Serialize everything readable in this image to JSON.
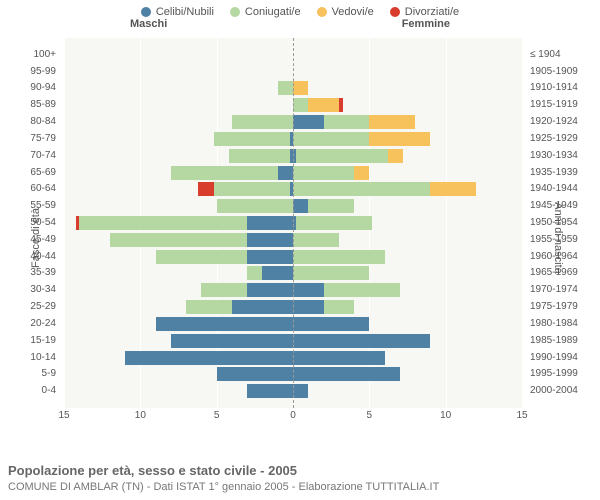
{
  "chart": {
    "type": "population-pyramid",
    "legend": [
      {
        "label": "Celibi/Nubili",
        "color": "#4f81a4"
      },
      {
        "label": "Coniugati/e",
        "color": "#b5d7a1"
      },
      {
        "label": "Vedovi/e",
        "color": "#f7c15b"
      },
      {
        "label": "Divorziati/e",
        "color": "#d73c2c"
      }
    ],
    "maschi_header": "Maschi",
    "femmine_header": "Femmine",
    "y_left_label": "Fasce di età",
    "y_right_label": "Anni di nascita",
    "x_max": 15,
    "x_ticks": [
      -15,
      -10,
      -5,
      0,
      5,
      10,
      15
    ],
    "plot_bg": "#f7f7f4",
    "grid_color": "#ffffff",
    "midline_color": "#999999",
    "age_labels": [
      "0-4",
      "5-9",
      "10-14",
      "15-19",
      "20-24",
      "25-29",
      "30-34",
      "35-39",
      "40-44",
      "45-49",
      "50-54",
      "55-59",
      "60-64",
      "65-69",
      "70-74",
      "75-79",
      "80-84",
      "85-89",
      "90-94",
      "95-99",
      "100+"
    ],
    "birth_labels": [
      "2000-2004",
      "1995-1999",
      "1990-1994",
      "1985-1989",
      "1980-1984",
      "1975-1979",
      "1970-1974",
      "1965-1969",
      "1960-1964",
      "1955-1959",
      "1950-1954",
      "1945-1949",
      "1940-1944",
      "1935-1939",
      "1930-1934",
      "1925-1929",
      "1920-1924",
      "1915-1919",
      "1910-1914",
      "1905-1909",
      "≤ 1904"
    ],
    "rows": [
      {
        "m": [
          3,
          0,
          0,
          0
        ],
        "f": [
          1,
          0,
          0,
          0
        ]
      },
      {
        "m": [
          5,
          0,
          0,
          0
        ],
        "f": [
          7,
          0,
          0,
          0
        ]
      },
      {
        "m": [
          11,
          0,
          0,
          0
        ],
        "f": [
          6,
          0,
          0,
          0
        ]
      },
      {
        "m": [
          8,
          0,
          0,
          0
        ],
        "f": [
          9,
          0,
          0,
          0
        ]
      },
      {
        "m": [
          9,
          0,
          0,
          0
        ],
        "f": [
          5,
          0,
          0,
          0
        ]
      },
      {
        "m": [
          4,
          3,
          0,
          0
        ],
        "f": [
          2,
          2,
          0,
          0
        ]
      },
      {
        "m": [
          3,
          3,
          0,
          0
        ],
        "f": [
          2,
          5,
          0,
          0
        ]
      },
      {
        "m": [
          2,
          1,
          0,
          0
        ],
        "f": [
          0,
          5,
          0,
          0
        ]
      },
      {
        "m": [
          3,
          6,
          0,
          0
        ],
        "f": [
          0,
          6,
          0,
          0
        ]
      },
      {
        "m": [
          3,
          9,
          0,
          0
        ],
        "f": [
          0,
          3,
          0,
          0
        ]
      },
      {
        "m": [
          3,
          11,
          0,
          0.2
        ],
        "f": [
          0.2,
          5,
          0,
          0
        ]
      },
      {
        "m": [
          0,
          5,
          0,
          0
        ],
        "f": [
          1,
          3,
          0,
          0
        ]
      },
      {
        "m": [
          0.2,
          5,
          0,
          1
        ],
        "f": [
          0,
          9,
          3,
          0
        ]
      },
      {
        "m": [
          1,
          7,
          0,
          0
        ],
        "f": [
          0,
          4,
          1,
          0
        ]
      },
      {
        "m": [
          0.2,
          4,
          0,
          0
        ],
        "f": [
          0.2,
          6,
          1,
          0
        ]
      },
      {
        "m": [
          0.2,
          5,
          0,
          0
        ],
        "f": [
          0,
          5,
          4,
          0
        ]
      },
      {
        "m": [
          0,
          4,
          0,
          0
        ],
        "f": [
          2,
          3,
          3,
          0
        ]
      },
      {
        "m": [
          0,
          0,
          0,
          0
        ],
        "f": [
          0,
          1,
          2,
          0.3
        ]
      },
      {
        "m": [
          0,
          1,
          0,
          0
        ],
        "f": [
          0,
          0,
          1,
          0
        ]
      },
      {
        "m": [
          0,
          0,
          0,
          0
        ],
        "f": [
          0,
          0,
          0,
          0
        ]
      },
      {
        "m": [
          0,
          0,
          0,
          0
        ],
        "f": [
          0,
          0,
          0,
          0
        ]
      }
    ],
    "title": "Popolazione per età, sesso e stato civile - 2005",
    "subtitle": "COMUNE DI AMBLAR (TN) - Dati ISTAT 1° gennaio 2005 - Elaborazione TUTTITALIA.IT"
  }
}
